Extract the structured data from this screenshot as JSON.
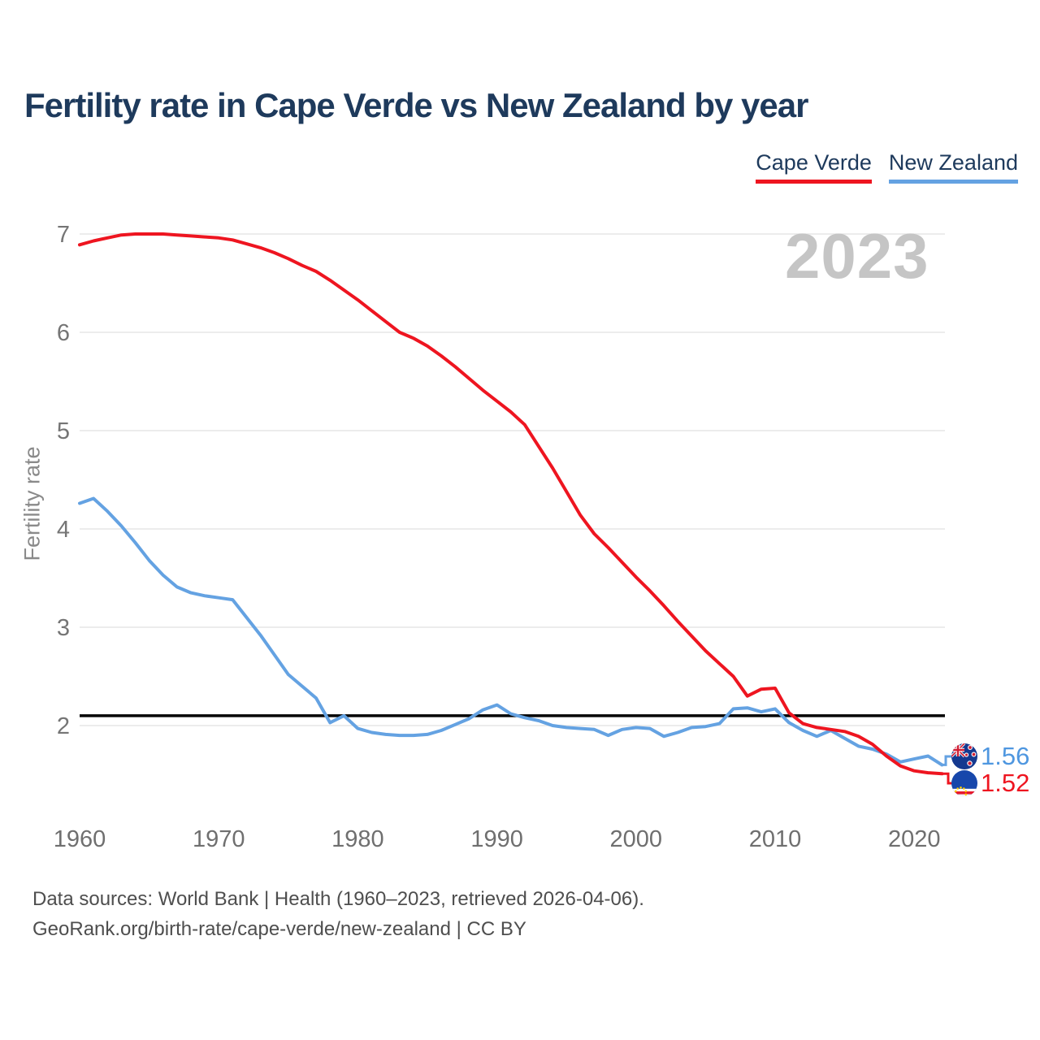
{
  "title": "Fertility rate in Cape Verde vs New Zealand by year",
  "watermark_year": "2023",
  "legend": [
    {
      "label": "Cape Verde",
      "color": "#ee1520"
    },
    {
      "label": "New Zealand",
      "color": "#64a2e2"
    }
  ],
  "end_labels": {
    "new_zealand": {
      "value": "1.56",
      "flag_icon": "new-zealand-flag-icon"
    },
    "cape_verde": {
      "value": "1.52",
      "flag_icon": "cape-verde-flag-icon"
    }
  },
  "footer": {
    "line1": "Data sources: World Bank | Health (1960–2023, retrieved 2026-04-06).",
    "line2": "GeoRank.org/birth-rate/cape-verde/new-zealand | CC BY"
  },
  "chart_data": {
    "type": "line",
    "title": "Fertility rate in Cape Verde vs New Zealand by year",
    "xlabel": "",
    "ylabel": "Fertility rate",
    "x_range": [
      1960,
      2023
    ],
    "ylim": [
      1.4,
      7.1
    ],
    "x_ticks": [
      1960,
      1970,
      1980,
      1990,
      2000,
      2010,
      2020
    ],
    "y_ticks": [
      7,
      6,
      5,
      4,
      3,
      2
    ],
    "grid": "horizontal",
    "legend_position": "top-right",
    "replacement_line": 2.1,
    "replacement_line_color": "#000000",
    "gridline_color": "#ececec",
    "tick_color": "#757575",
    "series": [
      {
        "name": "Cape Verde",
        "color": "#ee1520",
        "year_start": 1960,
        "end_value_label": "1.52",
        "values": [
          6.89,
          6.93,
          6.96,
          6.99,
          7.0,
          7.0,
          7.0,
          6.99,
          6.98,
          6.97,
          6.96,
          6.94,
          6.9,
          6.86,
          6.81,
          6.75,
          6.68,
          6.62,
          6.53,
          6.43,
          6.33,
          6.22,
          6.11,
          6.0,
          5.94,
          5.86,
          5.76,
          5.65,
          5.53,
          5.41,
          5.3,
          5.19,
          5.06,
          4.84,
          4.62,
          4.38,
          4.14,
          3.95,
          3.81,
          3.66,
          3.51,
          3.37,
          3.22,
          3.06,
          2.91,
          2.76,
          2.63,
          2.5,
          2.3,
          2.37,
          2.38,
          2.13,
          2.02,
          1.98,
          1.96,
          1.94,
          1.89,
          1.81,
          1.69,
          1.59,
          1.54,
          1.52,
          1.51,
          1.52
        ]
      },
      {
        "name": "New Zealand",
        "color": "#64a2e2",
        "year_start": 1960,
        "end_value_label": "1.56",
        "values": [
          4.26,
          4.31,
          4.18,
          4.03,
          3.86,
          3.68,
          3.53,
          3.41,
          3.35,
          3.32,
          3.3,
          3.28,
          3.1,
          2.92,
          2.72,
          2.52,
          2.4,
          2.28,
          2.03,
          2.1,
          1.97,
          1.93,
          1.91,
          1.9,
          1.9,
          1.91,
          1.95,
          2.01,
          2.07,
          2.16,
          2.21,
          2.12,
          2.08,
          2.05,
          2.0,
          1.98,
          1.97,
          1.96,
          1.9,
          1.96,
          1.98,
          1.97,
          1.89,
          1.93,
          1.98,
          1.99,
          2.02,
          2.17,
          2.18,
          2.14,
          2.17,
          2.03,
          1.95,
          1.89,
          1.95,
          1.87,
          1.79,
          1.76,
          1.71,
          1.63,
          1.66,
          1.69,
          1.6,
          1.56
        ]
      }
    ]
  }
}
